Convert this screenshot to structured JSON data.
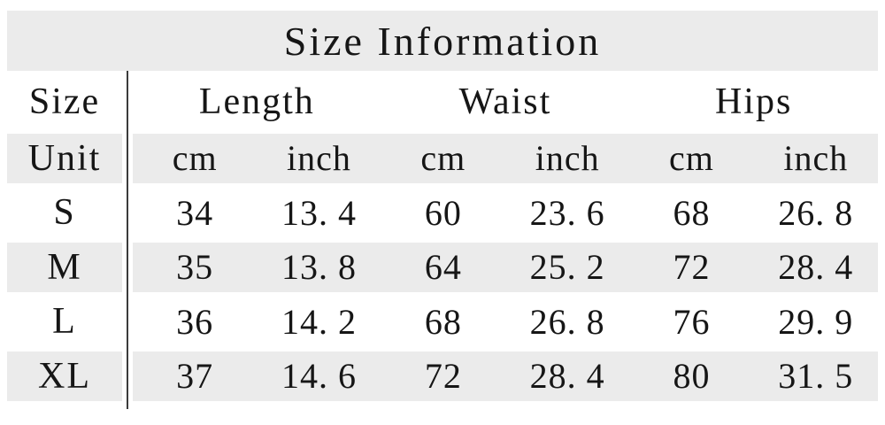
{
  "title": "Size Information",
  "table": {
    "size_col_header": "Size",
    "unit_row_label": "Unit",
    "groups": [
      "Length",
      "Waist",
      "Hips"
    ],
    "unit_cells": [
      "cm",
      "inch",
      "cm",
      "inch",
      "cm",
      "inch"
    ],
    "rows": [
      {
        "size": "S",
        "cells": [
          "34",
          "13. 4",
          "60",
          "23. 6",
          "68",
          "26. 8"
        ]
      },
      {
        "size": "M",
        "cells": [
          "35",
          "13. 8",
          "64",
          "25. 2",
          "72",
          "28. 4"
        ]
      },
      {
        "size": "L",
        "cells": [
          "36",
          "14. 2",
          "68",
          "26. 8",
          "76",
          "29. 9"
        ]
      },
      {
        "size": "XL",
        "cells": [
          "37",
          "14. 6",
          "72",
          "28. 4",
          "80",
          "31. 5"
        ]
      }
    ]
  },
  "chart_data": {
    "type": "table",
    "title": "Size Information",
    "columns": [
      "Size",
      "Length cm",
      "Length inch",
      "Waist cm",
      "Waist inch",
      "Hips cm",
      "Hips inch"
    ],
    "rows": [
      [
        "S",
        34,
        13.4,
        60,
        23.6,
        68,
        26.8
      ],
      [
        "M",
        35,
        13.8,
        64,
        25.2,
        72,
        28.4
      ],
      [
        "L",
        36,
        14.2,
        68,
        26.8,
        76,
        29.9
      ],
      [
        "XL",
        37,
        14.6,
        72,
        28.4,
        80,
        31.5
      ]
    ]
  },
  "colors": {
    "background": "#ffffff",
    "band": "#ebebeb",
    "divider": "#3b3b3b",
    "text": "#161616"
  }
}
